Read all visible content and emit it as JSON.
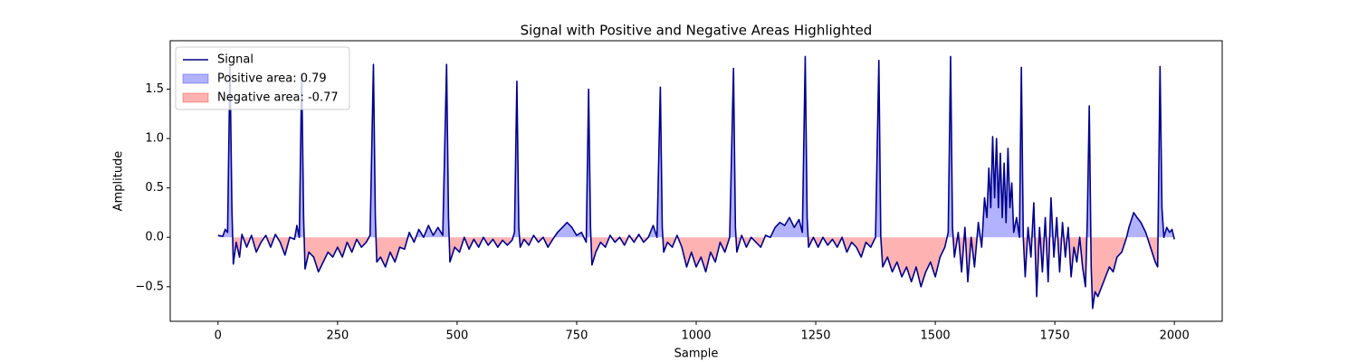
{
  "chart_data": {
    "type": "area-line",
    "title": "Signal with Positive and Negative Areas Highlighted",
    "xlabel": "Sample",
    "ylabel": "Amplitude",
    "xlim": [
      -100,
      2100
    ],
    "ylim": [
      -0.85,
      1.99
    ],
    "xticks": [
      0,
      250,
      500,
      750,
      1000,
      1250,
      1500,
      1750,
      2000
    ],
    "yticks": [
      {
        "value": -0.5,
        "label": "−0.5"
      },
      {
        "value": 0,
        "label": "0.0"
      },
      {
        "value": 0.5,
        "label": "0.5"
      },
      {
        "value": 1,
        "label": "1.0"
      },
      {
        "value": 1.5,
        "label": "1.5"
      }
    ],
    "legend": "upper left",
    "x": [
      0,
      10,
      15,
      20,
      25,
      29,
      32,
      38,
      45,
      50,
      60,
      70,
      80,
      90,
      100,
      110,
      120,
      130,
      140,
      150,
      160,
      165,
      170,
      175,
      179,
      182,
      190,
      200,
      210,
      220,
      230,
      240,
      250,
      260,
      270,
      280,
      290,
      300,
      310,
      318,
      325,
      329,
      332,
      340,
      350,
      360,
      370,
      380,
      390,
      400,
      410,
      420,
      430,
      440,
      450,
      460,
      470,
      478,
      482,
      485,
      495,
      505,
      515,
      525,
      535,
      545,
      555,
      565,
      575,
      585,
      595,
      605,
      615,
      620,
      625,
      629,
      632,
      640,
      650,
      660,
      670,
      680,
      690,
      700,
      710,
      720,
      730,
      740,
      750,
      760,
      770,
      775,
      779,
      782,
      790,
      800,
      810,
      820,
      830,
      840,
      850,
      860,
      870,
      880,
      890,
      900,
      910,
      918,
      925,
      929,
      932,
      940,
      950,
      960,
      970,
      980,
      990,
      1000,
      1010,
      1020,
      1030,
      1040,
      1050,
      1060,
      1070,
      1078,
      1082,
      1085,
      1095,
      1105,
      1115,
      1125,
      1135,
      1145,
      1155,
      1165,
      1175,
      1185,
      1195,
      1205,
      1215,
      1222,
      1228,
      1232,
      1235,
      1245,
      1255,
      1265,
      1275,
      1285,
      1295,
      1305,
      1315,
      1325,
      1335,
      1345,
      1355,
      1365,
      1375,
      1382,
      1386,
      1390,
      1400,
      1410,
      1420,
      1430,
      1440,
      1450,
      1460,
      1470,
      1480,
      1490,
      1500,
      1510,
      1520,
      1527,
      1532,
      1536,
      1540,
      1548,
      1555,
      1562,
      1568,
      1575,
      1582,
      1590,
      1597,
      1603,
      1608,
      1612,
      1616,
      1620,
      1624,
      1628,
      1632,
      1636,
      1640,
      1644,
      1648,
      1652,
      1656,
      1660,
      1664,
      1670,
      1676,
      1680,
      1684,
      1688,
      1694,
      1700,
      1706,
      1712,
      1718,
      1724,
      1730,
      1736,
      1742,
      1748,
      1754,
      1760,
      1766,
      1772,
      1778,
      1784,
      1790,
      1796,
      1802,
      1808,
      1814,
      1818,
      1822,
      1826,
      1829,
      1834,
      1840,
      1848,
      1856,
      1864,
      1872,
      1880,
      1890,
      1900,
      1905,
      1915,
      1922,
      1930,
      1940,
      1950,
      1960,
      1965,
      1970,
      1974,
      1978,
      1984,
      1990,
      1995,
      2000
    ],
    "series": [
      {
        "name": "Signal",
        "color": "#00008b",
        "values": [
          0.02,
          0.01,
          0.08,
          0.05,
          1.75,
          0.3,
          -0.27,
          -0.05,
          -0.2,
          0.03,
          -0.1,
          0.02,
          -0.15,
          -0.05,
          0.02,
          -0.1,
          0.03,
          -0.05,
          -0.18,
          0.0,
          -0.02,
          0.12,
          0.0,
          1.65,
          0.2,
          -0.32,
          -0.15,
          -0.2,
          -0.35,
          -0.25,
          -0.15,
          -0.2,
          -0.1,
          -0.2,
          -0.05,
          -0.15,
          -0.02,
          -0.1,
          -0.05,
          0.02,
          1.75,
          0.2,
          -0.25,
          -0.2,
          -0.3,
          -0.15,
          -0.25,
          -0.1,
          -0.12,
          0.05,
          -0.05,
          0.08,
          0.0,
          0.12,
          0.02,
          0.1,
          0.02,
          1.75,
          0.2,
          -0.25,
          -0.1,
          -0.15,
          0.0,
          -0.12,
          -0.02,
          -0.1,
          0.0,
          -0.08,
          -0.02,
          -0.1,
          -0.03,
          -0.08,
          -0.03,
          0.05,
          1.58,
          0.1,
          -0.1,
          -0.02,
          -0.08,
          0.02,
          -0.05,
          0.0,
          -0.1,
          -0.02,
          0.05,
          0.1,
          0.15,
          0.1,
          0.02,
          0.05,
          -0.05,
          1.5,
          0.1,
          -0.28,
          -0.15,
          -0.05,
          -0.1,
          0.02,
          -0.05,
          0.0,
          -0.08,
          0.02,
          -0.05,
          0.03,
          -0.05,
          0.0,
          0.12,
          0.0,
          1.52,
          0.1,
          -0.15,
          -0.05,
          -0.1,
          0.02,
          -0.1,
          -0.3,
          -0.15,
          -0.3,
          -0.2,
          -0.35,
          -0.15,
          -0.25,
          -0.05,
          -0.15,
          0.0,
          1.71,
          0.1,
          -0.15,
          0.02,
          -0.1,
          0.0,
          -0.05,
          -0.1,
          0.02,
          0.0,
          0.1,
          0.15,
          0.12,
          0.2,
          0.1,
          0.18,
          0.05,
          1.83,
          0.2,
          -0.1,
          0.0,
          -0.1,
          0.0,
          -0.08,
          -0.02,
          -0.1,
          0.0,
          -0.15,
          -0.05,
          -0.1,
          -0.2,
          -0.05,
          -0.1,
          0.0,
          1.79,
          0.0,
          -0.3,
          -0.2,
          -0.35,
          -0.25,
          -0.4,
          -0.3,
          -0.45,
          -0.3,
          -0.5,
          -0.35,
          -0.25,
          -0.4,
          -0.2,
          -0.1,
          0.05,
          1.83,
          0.1,
          -0.2,
          0.05,
          -0.35,
          0.1,
          -0.45,
          0.0,
          -0.3,
          0.15,
          -0.1,
          0.4,
          0.2,
          0.7,
          0.3,
          1.02,
          0.4,
          1.0,
          0.3,
          0.85,
          0.2,
          0.75,
          0.15,
          0.9,
          0.3,
          0.55,
          0.05,
          0.2,
          0.0,
          1.72,
          0.0,
          -0.4,
          0.1,
          -0.2,
          0.35,
          -0.6,
          0.1,
          -0.35,
          0.2,
          -0.45,
          0.4,
          -0.2,
          0.2,
          -0.35,
          0.15,
          -0.2,
          0.1,
          -0.4,
          -0.1,
          -0.25,
          0.0,
          -0.3,
          -0.5,
          0.2,
          1.33,
          -0.3,
          -0.72,
          -0.55,
          -0.6,
          -0.5,
          -0.4,
          -0.3,
          -0.35,
          -0.2,
          -0.15,
          0.0,
          0.1,
          0.25,
          0.2,
          0.15,
          0.05,
          -0.1,
          -0.25,
          -0.3,
          1.73,
          0.3,
          0.0,
          0.1,
          0.05,
          0.08,
          -0.02
        ]
      }
    ],
    "fills": [
      {
        "name": "Positive area: 0.79",
        "color": "#0000ff",
        "side": "positive"
      },
      {
        "name": "Negative area: -0.77",
        "color": "#ff0000",
        "side": "negative"
      }
    ]
  }
}
